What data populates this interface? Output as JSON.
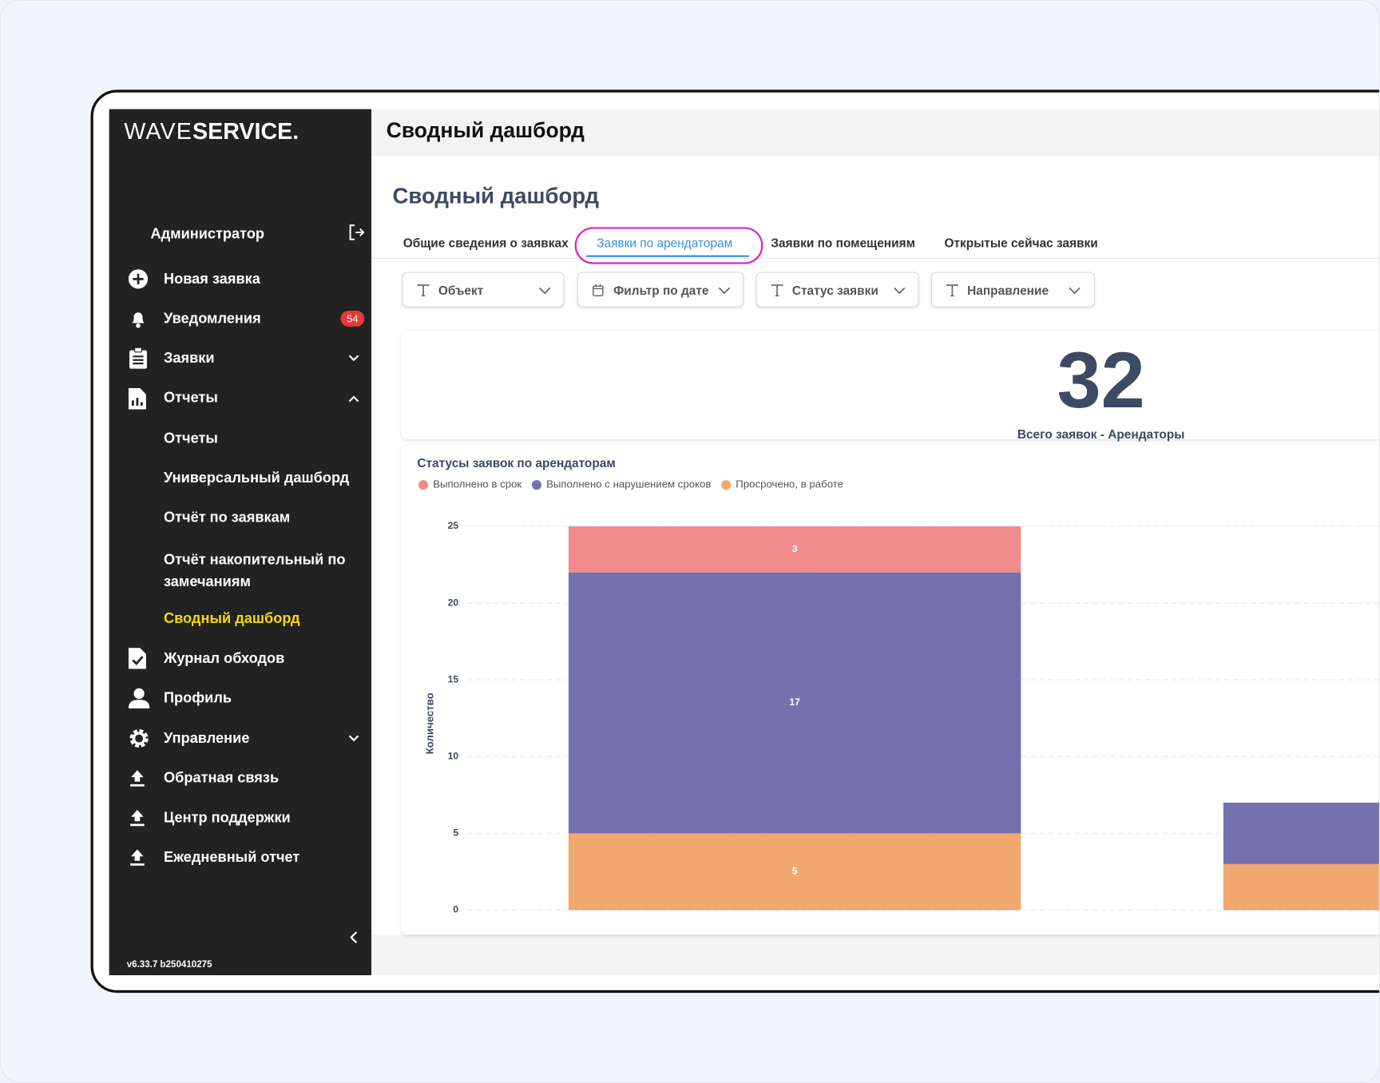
{
  "logo": {
    "light": "WAVE",
    "bold": "SERVICE."
  },
  "sidebar": {
    "user": "Администратор",
    "items": [
      {
        "label": "Новая заявка"
      },
      {
        "label": "Уведомления",
        "badge": 54
      },
      {
        "label": "Заявки"
      },
      {
        "label": "Отчеты"
      },
      {
        "label": "Отчеты"
      },
      {
        "label": "Универсальный дашборд"
      },
      {
        "label": "Отчёт по заявкам"
      },
      {
        "label": "Отчёт накопительный по замечаниям"
      },
      {
        "label": "Сводный дашборд"
      },
      {
        "label": "Журнал обходов"
      },
      {
        "label": "Профиль"
      },
      {
        "label": "Управление"
      },
      {
        "label": "Обратная связь"
      },
      {
        "label": "Центр поддержки"
      },
      {
        "label": "Ежедневный отчет"
      }
    ],
    "version": "v6.33.7 b250410275"
  },
  "header": {
    "title": "Сводный дашборд"
  },
  "page": {
    "title": "Сводный дашборд",
    "tabs": [
      "Общие сведения о заявках",
      "Заявки по арендаторам",
      "Заявки по помещениям",
      "Открытые сейчас заявки"
    ],
    "filters": [
      "Объект",
      "Фильтр по дате",
      "Статус заявки",
      "Направление"
    ]
  },
  "kpi": {
    "value": 32,
    "label": "Всего заявок - Арендаторы"
  },
  "chart_data": {
    "type": "stacked-bar",
    "title": "Статусы заявок по арендаторам",
    "y_label": "Количество",
    "categories": [
      null,
      null
    ],
    "series": [
      {
        "name": "Выполнено в срок",
        "color": "#f08c8c",
        "values": [
          3,
          0
        ]
      },
      {
        "name": "Выполнено с нарушением сроков",
        "color": "#7472ae",
        "values": [
          17,
          4
        ]
      },
      {
        "name": "Просрочено, в работе",
        "color": "#f3a870",
        "values": [
          5,
          3
        ]
      }
    ],
    "ylim": [
      0,
      25
    ],
    "yticks": [
      0,
      5,
      10,
      15,
      20,
      25
    ],
    "grid": true
  }
}
